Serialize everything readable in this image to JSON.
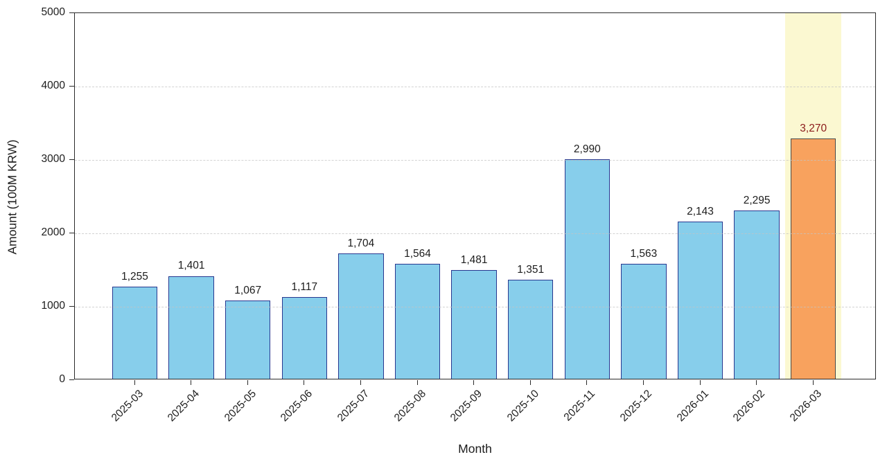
{
  "chart_data": {
    "type": "bar",
    "title": "",
    "xlabel": "Month",
    "ylabel": "Amount (100M KRW)",
    "categories": [
      "2025-03",
      "2025-04",
      "2025-05",
      "2025-06",
      "2025-07",
      "2025-08",
      "2025-09",
      "2025-10",
      "2025-11",
      "2025-12",
      "2026-01",
      "2026-02",
      "2026-03"
    ],
    "values": [
      1255,
      1401,
      1067,
      1117,
      1704,
      1564,
      1481,
      1351,
      2990,
      1563,
      2143,
      2295,
      3270
    ],
    "value_labels": [
      "1,255",
      "1,401",
      "1,067",
      "1,117",
      "1,704",
      "1,564",
      "1,481",
      "1,351",
      "2,990",
      "1,563",
      "2,143",
      "2,295",
      "3,270"
    ],
    "highlight_index": 12,
    "ylim": [
      0,
      5000
    ],
    "yticks": [
      0,
      1000,
      2000,
      3000,
      4000,
      5000
    ],
    "grid": "horizontal-dashed",
    "legend": "none",
    "colors": {
      "bar_fill": "#87CEEB",
      "bar_edge": "#27378F",
      "highlight_bar_fill": "#F8A25E",
      "highlight_bar_edge": "#4A4A4A",
      "highlight_band": "#FBF8D1",
      "value_label": "#1C1C1C",
      "highlight_value_label": "#8B1A1A",
      "gridline": "#C3C3C3",
      "axis": "#2A2A2A"
    }
  }
}
